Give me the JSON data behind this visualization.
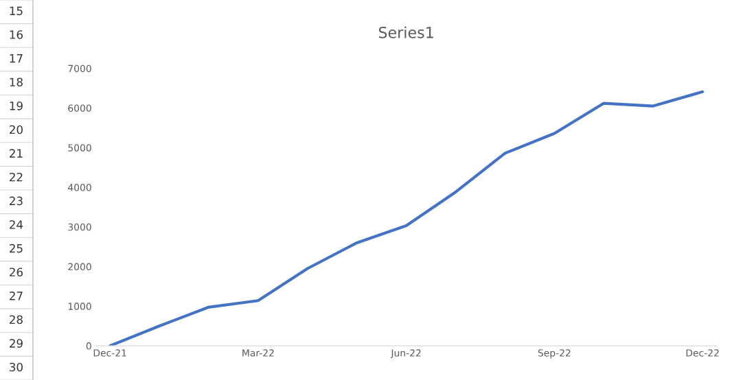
{
  "chart_data": {
    "type": "line",
    "title": "Series1",
    "categories": [
      "Dec-21",
      null,
      null,
      "Mar-22",
      null,
      null,
      "Jun-22",
      null,
      null,
      "Sep-22",
      null,
      null,
      "Dec-22"
    ],
    "series": [
      {
        "color": "#4472c4",
        "values": [
          0,
          500,
          975,
          1140,
          1950,
          2600,
          3030,
          3880,
          4860,
          5360,
          6120,
          6050,
          6410
        ]
      }
    ],
    "ylim": [
      0,
      7000
    ],
    "yticks": [
      0,
      1000,
      2000,
      3000,
      4000,
      5000,
      6000,
      7000
    ],
    "grid": false,
    "legend": false,
    "marker": "none",
    "line_style": "solid",
    "annotations": [
      "15",
      "16",
      "17",
      "18",
      "19",
      "20",
      "21",
      "22",
      "23",
      "24",
      "25",
      "26",
      "27",
      "28",
      "29",
      "30"
    ]
  }
}
